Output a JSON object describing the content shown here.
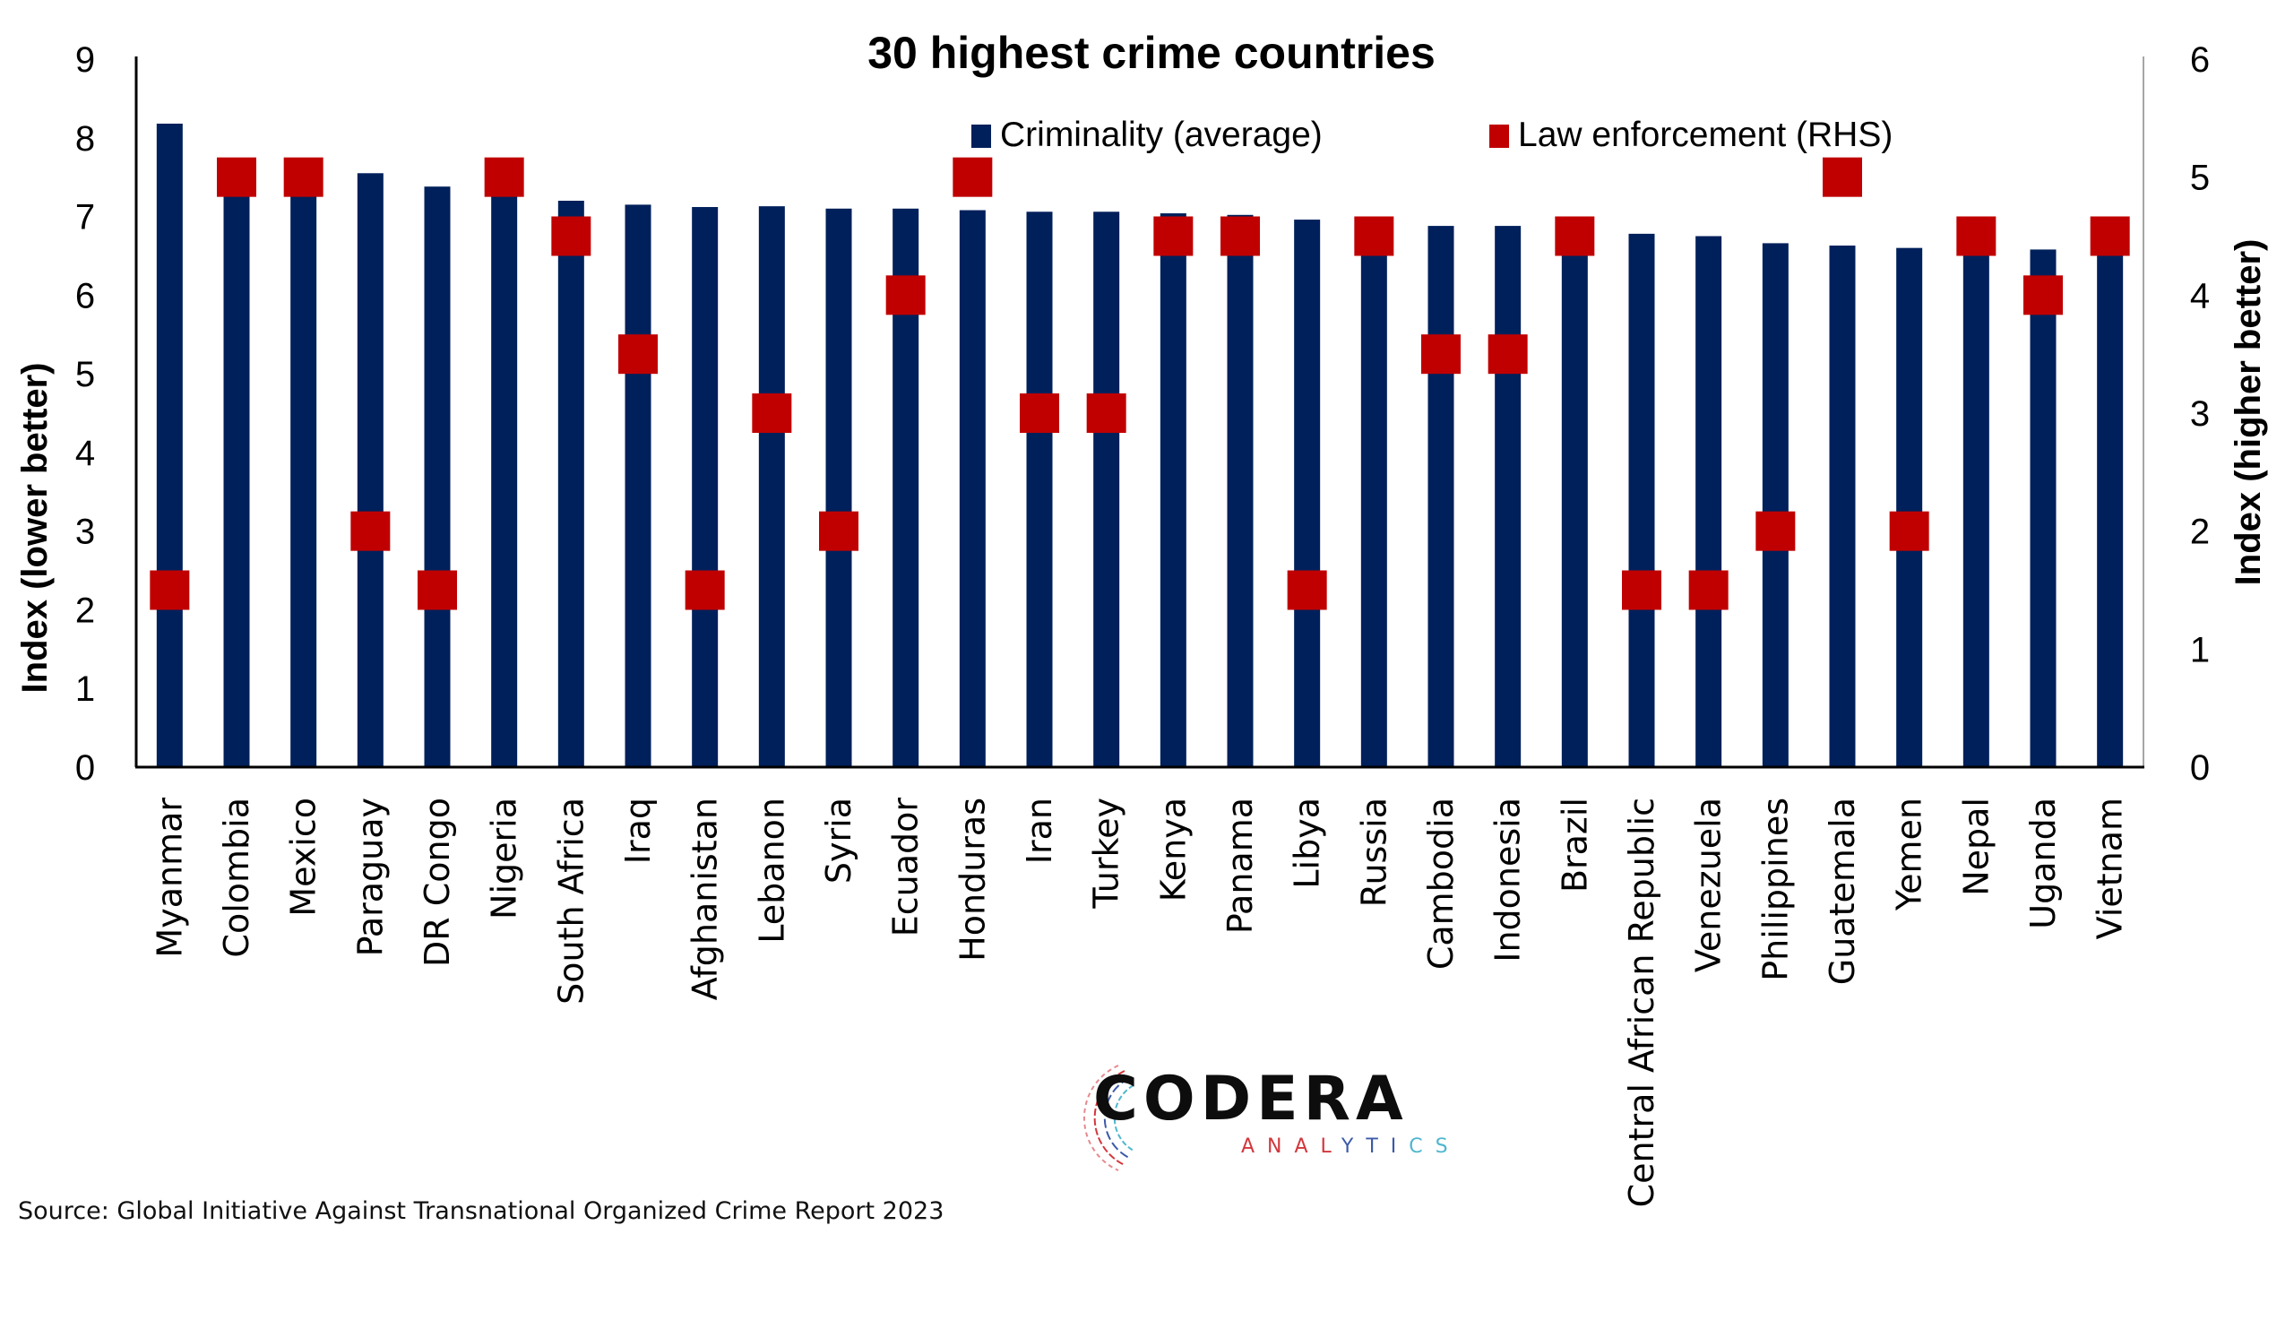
{
  "chart_data": {
    "type": "bar",
    "title": "30 highest crime countries",
    "categories": [
      "Myanmar",
      "Colombia",
      "Mexico",
      "Paraguay",
      "DR Congo",
      "Nigeria",
      "South Africa",
      "Iraq",
      "Afghanistan",
      "Lebanon",
      "Syria",
      "Ecuador",
      "Honduras",
      "Iran",
      "Turkey",
      "Kenya",
      "Panama",
      "Libya",
      "Russia",
      "Cambodia",
      "Indonesia",
      "Brazil",
      "Central African Republic",
      "Venezuela",
      "Philippines",
      "Guatemala",
      "Yemen",
      "Nepal",
      "Uganda",
      "Vietnam"
    ],
    "series": [
      {
        "name": "Criminality (average)",
        "type": "bar",
        "axis": "left",
        "color": "#00205b",
        "values": [
          8.18,
          7.66,
          7.56,
          7.55,
          7.38,
          7.28,
          7.2,
          7.15,
          7.12,
          7.13,
          7.1,
          7.1,
          7.08,
          7.06,
          7.06,
          7.04,
          7.02,
          6.96,
          6.93,
          6.88,
          6.88,
          6.85,
          6.78,
          6.75,
          6.66,
          6.63,
          6.6,
          6.59,
          6.58,
          6.55
        ]
      },
      {
        "name": "Law enforcement (RHS)",
        "type": "marker",
        "axis": "right",
        "color": "#c00000",
        "values": [
          1.5,
          5,
          5,
          2,
          1.5,
          5,
          4.5,
          3.5,
          1.5,
          3,
          2,
          4,
          5,
          3,
          3,
          4.5,
          4.5,
          1.5,
          4.5,
          3.5,
          3.5,
          4.5,
          1.5,
          1.5,
          2,
          5,
          2,
          4.5,
          4,
          4.5
        ]
      }
    ],
    "ylabel": "Index (lower better)",
    "y2label": "Index (higher better)",
    "ylim": [
      0,
      9
    ],
    "y2lim": [
      0,
      6
    ],
    "yticks": [
      "0",
      "1",
      "2",
      "3",
      "4",
      "5",
      "6",
      "7",
      "8",
      "9"
    ],
    "y2ticks": [
      "0",
      "1",
      "2",
      "3",
      "4",
      "5",
      "6"
    ],
    "grid": false,
    "legend_position": "top-right"
  },
  "source": "Source: Global Initiative Against Transnational Organized Crime Report 2023",
  "logo": {
    "name": "CODERA",
    "tagline": "ANALYTICS"
  }
}
